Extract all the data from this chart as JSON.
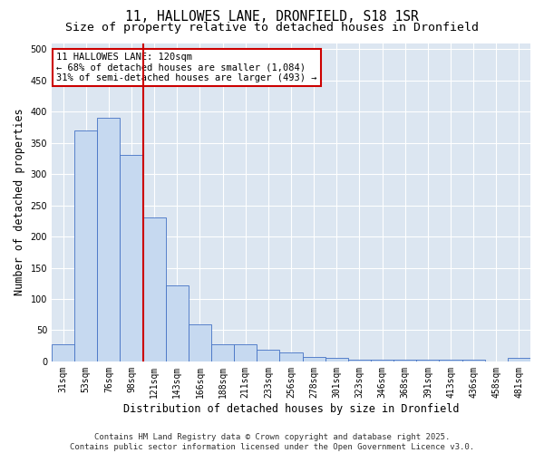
{
  "title1": "11, HALLOWES LANE, DRONFIELD, S18 1SR",
  "title2": "Size of property relative to detached houses in Dronfield",
  "xlabel": "Distribution of detached houses by size in Dronfield",
  "ylabel": "Number of detached properties",
  "categories": [
    "31sqm",
    "53sqm",
    "76sqm",
    "98sqm",
    "121sqm",
    "143sqm",
    "166sqm",
    "188sqm",
    "211sqm",
    "233sqm",
    "256sqm",
    "278sqm",
    "301sqm",
    "323sqm",
    "346sqm",
    "368sqm",
    "391sqm",
    "413sqm",
    "436sqm",
    "458sqm",
    "481sqm"
  ],
  "values": [
    28,
    370,
    390,
    330,
    230,
    122,
    60,
    27,
    27,
    18,
    15,
    7,
    5,
    2,
    2,
    2,
    2,
    2,
    2,
    0,
    5
  ],
  "bar_color": "#c6d9f0",
  "bar_edge_color": "#4472c4",
  "vline_color": "#cc0000",
  "annotation_box_text": "11 HALLOWES LANE: 120sqm\n← 68% of detached houses are smaller (1,084)\n31% of semi-detached houses are larger (493) →",
  "ylim": [
    0,
    510
  ],
  "yticks": [
    0,
    50,
    100,
    150,
    200,
    250,
    300,
    350,
    400,
    450,
    500
  ],
  "background_color": "#dce6f1",
  "grid_color": "#ffffff",
  "footer": "Contains HM Land Registry data © Crown copyright and database right 2025.\nContains public sector information licensed under the Open Government Licence v3.0.",
  "title_fontsize": 10.5,
  "subtitle_fontsize": 9.5,
  "tick_fontsize": 7,
  "ylabel_fontsize": 8.5,
  "xlabel_fontsize": 8.5,
  "footer_fontsize": 6.5,
  "annot_fontsize": 7.5,
  "vline_x_index": 3.5
}
